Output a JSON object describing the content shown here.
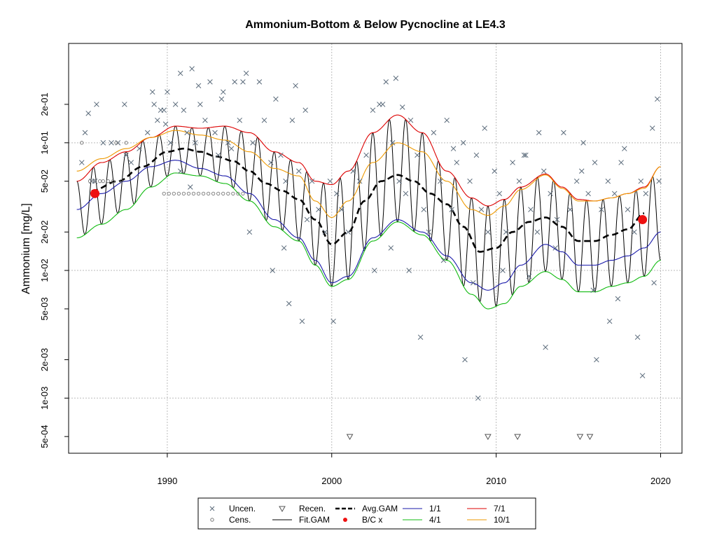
{
  "chart_data": {
    "type": "scatter",
    "title": "Ammonium-Bottom & Below Pycnocline at LE4.3",
    "xlabel": "",
    "ylabel": "Ammonium [mg/L]",
    "y_scale": "log",
    "xlim": [
      1984.0,
      2021.3
    ],
    "ylim": [
      0.00037,
      0.6
    ],
    "x_ticks": [
      1990,
      2000,
      2010,
      2020
    ],
    "x_tick_labels": [
      "1990",
      "2000",
      "2010",
      "2020"
    ],
    "y_ticks": [
      0.0005,
      0.001,
      0.002,
      0.005,
      0.01,
      0.02,
      0.05,
      0.1,
      0.2
    ],
    "y_tick_labels": [
      "5e-04",
      "1e-03",
      "2e-03",
      "5e-03",
      "1e-02",
      "2e-02",
      "5e-02",
      "1e-01",
      "2e-01"
    ],
    "gridlines_x": [
      1990,
      2000,
      2010,
      2020
    ],
    "gridlines_y": [
      0.001,
      0.01,
      0.1
    ],
    "grid": true,
    "colors": {
      "uncen": "#5a6a7a",
      "cens": "#777777",
      "recen": "#555555",
      "fit_gam": "#000000",
      "avg_gam": "#000000",
      "bc": "#ee1111",
      "q1_1": "#1a1aaa",
      "q4_1": "#11bb11",
      "q7_1": "#dd0000",
      "q10_1": "#ee9900"
    },
    "series": [
      {
        "name": "Uncen.",
        "marker": "x",
        "x": [
          1984.8,
          1985.0,
          1985.4,
          1985.7,
          1986.1,
          1986.6,
          1987.0,
          1987.4,
          1987.5,
          1987.8,
          1988.3,
          1988.8,
          1989.1,
          1989.4,
          1989.6,
          1989.9,
          1990.0,
          1990.2,
          1990.5,
          1990.8,
          1991.0,
          1991.2,
          1991.5,
          1991.7,
          1992.0,
          1992.3,
          1992.6,
          1992.9,
          1993.1,
          1993.4,
          1993.7,
          1994.1,
          1994.4,
          1994.8,
          1995.2,
          1995.6,
          1995.9,
          1996.3,
          1996.6,
          1996.9,
          1997.2,
          1997.6,
          1998.0,
          1998.4,
          1998.8,
          1999.2,
          1999.6,
          1999.9,
          2000.3,
          2000.6,
          2001.0,
          2001.3,
          2001.7,
          2002.1,
          2002.5,
          2002.9,
          2003.3,
          2003.7,
          2004.1,
          2004.5,
          2004.8,
          2005.2,
          2005.6,
          2005.9,
          2006.2,
          2006.6,
          2007.0,
          2007.3,
          2007.6,
          2008.0,
          2008.4,
          2008.8,
          2009.1,
          2009.5,
          2009.9,
          2010.2,
          2010.6,
          2011.0,
          2011.4,
          2011.8,
          2012.1,
          2012.5,
          2012.9,
          2013.3,
          2013.7,
          2014.1,
          2014.5,
          2014.9,
          2015.2,
          2015.6,
          2016.0,
          2016.4,
          2016.8,
          2017.2,
          2017.6,
          2018.0,
          2018.4,
          2018.8,
          2019.1,
          2019.5,
          2019.8,
          1985.6,
          1990.8,
          1991.4,
          1993.9,
          1995.0,
          1997.1,
          1998.5,
          2002.6,
          2003.6,
          2004.7,
          2006.8,
          2008.6,
          2010.4,
          2012.0,
          2013.6,
          2015.9,
          2017.4,
          2019.6,
          1996.4,
          1998.2,
          2000.1,
          2005.4,
          2008.1,
          2008.9,
          2013.0,
          2016.1,
          2016.9,
          2018.6,
          2018.9,
          1989.2,
          1989.8,
          1991.9,
          1993.3,
          1994.6,
          1997.8,
          2003.9,
          2007.4,
          2011.7,
          2015.3,
          2019.9,
          1985.2,
          2003.1,
          2004.3,
          2009.3,
          2012.6,
          2017.8,
          1997.4
        ],
        "y": [
          0.07,
          0.12,
          0.05,
          0.2,
          0.1,
          0.1,
          0.1,
          0.2,
          0.08,
          0.07,
          0.09,
          0.12,
          0.25,
          0.15,
          0.18,
          0.14,
          0.25,
          0.1,
          0.2,
          0.35,
          0.18,
          0.12,
          0.38,
          0.1,
          0.2,
          0.15,
          0.3,
          0.12,
          0.08,
          0.25,
          0.1,
          0.3,
          0.15,
          0.35,
          0.1,
          0.3,
          0.15,
          0.07,
          0.22,
          0.08,
          0.05,
          0.15,
          0.06,
          0.18,
          0.05,
          0.03,
          0.02,
          0.05,
          0.04,
          0.03,
          0.02,
          0.06,
          0.05,
          0.08,
          0.18,
          0.2,
          0.3,
          0.1,
          0.05,
          0.04,
          0.15,
          0.08,
          0.03,
          0.02,
          0.12,
          0.05,
          0.15,
          0.03,
          0.07,
          0.1,
          0.05,
          0.08,
          0.03,
          0.02,
          0.06,
          0.04,
          0.02,
          0.07,
          0.05,
          0.08,
          0.03,
          0.02,
          0.06,
          0.04,
          0.025,
          0.12,
          0.03,
          0.05,
          0.06,
          0.04,
          0.07,
          0.03,
          0.05,
          0.04,
          0.07,
          0.03,
          0.02,
          0.05,
          0.04,
          0.13,
          0.22,
          0.05,
          0.06,
          0.045,
          0.09,
          0.02,
          0.015,
          0.025,
          0.01,
          0.015,
          0.01,
          0.012,
          0.008,
          0.01,
          0.009,
          0.015,
          0.007,
          0.006,
          0.008,
          0.01,
          0.004,
          0.004,
          0.003,
          0.002,
          0.001,
          0.0025,
          0.002,
          0.004,
          0.003,
          0.0015,
          0.2,
          0.18,
          0.28,
          0.22,
          0.3,
          0.28,
          0.32,
          0.09,
          0.08,
          0.1,
          0.05,
          0.17,
          0.2,
          0.19,
          0.13,
          0.12,
          0.09,
          0.0055
        ]
      },
      {
        "name": "Cens.",
        "marker": "o",
        "x": [
          1984.8,
          1985.3,
          1985.6,
          1985.9,
          1986.1,
          1986.4,
          1986.7,
          1986.9,
          1987.2,
          1987.5,
          1989.8,
          1990.1,
          1990.4,
          1990.7,
          1991.0,
          1991.3,
          1991.6,
          1991.9,
          1992.2,
          1992.5,
          1992.8,
          1993.1,
          1993.4,
          1993.7,
          1994.0,
          1994.3,
          1994.6
        ],
        "y": [
          0.1,
          0.05,
          0.05,
          0.05,
          0.05,
          0.05,
          0.05,
          0.1,
          0.05,
          0.1,
          0.04,
          0.04,
          0.04,
          0.04,
          0.04,
          0.04,
          0.04,
          0.04,
          0.04,
          0.04,
          0.04,
          0.04,
          0.04,
          0.04,
          0.04,
          0.04,
          0.04
        ]
      },
      {
        "name": "Recen.",
        "marker": "triangle-down",
        "x": [
          2001.1,
          2009.5,
          2011.3,
          2015.1,
          2015.7
        ],
        "y": [
          0.0005,
          0.0005,
          0.0005,
          0.0005,
          0.0005
        ]
      },
      {
        "name": "Fit.GAM",
        "line": "solid",
        "color": "#000000",
        "description": "seasonal fitted curve oscillating between 4/1 and 7/1 envelopes"
      },
      {
        "name": "Avg.GAM",
        "line": "dashed",
        "x": [
          1985.4,
          1987.0,
          1988.5,
          1990.0,
          1991.0,
          1992.0,
          1993.0,
          1994.0,
          1995.0,
          1996.0,
          1997.0,
          1998.0,
          1999.0,
          2000.0,
          2001.0,
          2002.0,
          2003.0,
          2004.0,
          2005.0,
          2006.0,
          2007.0,
          2008.0,
          2009.0,
          2010.0,
          2011.0,
          2012.0,
          2013.0,
          2014.0,
          2015.0,
          2016.0,
          2017.0,
          2018.0,
          2019.0
        ],
        "y": [
          0.042,
          0.05,
          0.065,
          0.085,
          0.09,
          0.085,
          0.078,
          0.072,
          0.06,
          0.048,
          0.042,
          0.036,
          0.025,
          0.016,
          0.02,
          0.035,
          0.05,
          0.056,
          0.05,
          0.04,
          0.033,
          0.022,
          0.014,
          0.015,
          0.02,
          0.024,
          0.026,
          0.022,
          0.017,
          0.017,
          0.019,
          0.021,
          0.028
        ]
      },
      {
        "name": "1/1",
        "line": "solid",
        "x": [
          1984.5,
          1986.0,
          1987.5,
          1989.0,
          1990.5,
          1992.0,
          1993.5,
          1995.0,
          1996.5,
          1998.0,
          1999.0,
          2000.0,
          2001.0,
          2002.5,
          2004.0,
          2005.5,
          2007.0,
          2008.5,
          2009.5,
          2010.5,
          2011.5,
          2013.0,
          2014.0,
          2015.0,
          2016.0,
          2017.0,
          2018.0,
          2019.0,
          2020.0
        ],
        "y": [
          0.03,
          0.04,
          0.05,
          0.065,
          0.073,
          0.063,
          0.055,
          0.04,
          0.025,
          0.018,
          0.012,
          0.008,
          0.009,
          0.018,
          0.025,
          0.02,
          0.013,
          0.008,
          0.007,
          0.008,
          0.011,
          0.016,
          0.014,
          0.011,
          0.011,
          0.012,
          0.013,
          0.015,
          0.02
        ]
      },
      {
        "name": "4/1",
        "line": "solid",
        "x": [
          1984.5,
          1986.0,
          1987.5,
          1989.0,
          1990.5,
          1992.0,
          1993.5,
          1995.0,
          1996.5,
          1998.0,
          1999.0,
          2000.0,
          2001.0,
          2002.5,
          2004.0,
          2005.5,
          2007.0,
          2008.5,
          2009.5,
          2010.5,
          2011.5,
          2013.0,
          2014.0,
          2015.0,
          2016.0,
          2017.0,
          2018.0,
          2019.0,
          2020.0
        ],
        "y": [
          0.018,
          0.023,
          0.03,
          0.045,
          0.058,
          0.055,
          0.048,
          0.035,
          0.022,
          0.017,
          0.011,
          0.0075,
          0.0085,
          0.017,
          0.024,
          0.019,
          0.012,
          0.0065,
          0.005,
          0.0055,
          0.0075,
          0.0098,
          0.0085,
          0.0068,
          0.0068,
          0.0075,
          0.008,
          0.009,
          0.012
        ]
      },
      {
        "name": "7/1",
        "line": "solid",
        "x": [
          1984.5,
          1986.0,
          1987.5,
          1989.0,
          1990.5,
          1992.0,
          1993.5,
          1995.0,
          1996.5,
          1998.0,
          1999.0,
          2000.0,
          2001.0,
          2002.5,
          2004.0,
          2005.5,
          2007.0,
          2008.5,
          2009.5,
          2010.5,
          2011.5,
          2013.0,
          2014.0,
          2015.0,
          2016.0,
          2017.0,
          2018.0,
          2019.0,
          2020.0
        ],
        "y": [
          0.05,
          0.07,
          0.085,
          0.11,
          0.135,
          0.13,
          0.135,
          0.12,
          0.085,
          0.07,
          0.05,
          0.047,
          0.06,
          0.12,
          0.165,
          0.12,
          0.06,
          0.037,
          0.032,
          0.036,
          0.045,
          0.057,
          0.045,
          0.036,
          0.035,
          0.037,
          0.04,
          0.045,
          0.065
        ]
      },
      {
        "name": "10/1",
        "line": "solid",
        "x": [
          1984.5,
          1986.0,
          1987.5,
          1989.0,
          1990.5,
          1992.0,
          1993.5,
          1995.0,
          1996.5,
          1998.0,
          1999.0,
          2000.0,
          2001.0,
          2002.5,
          2004.0,
          2005.5,
          2007.0,
          2008.5,
          2009.5,
          2010.5,
          2011.5,
          2013.0,
          2014.0,
          2015.0,
          2016.0,
          2017.0,
          2018.0,
          2019.0,
          2020.0
        ],
        "y": [
          0.06,
          0.075,
          0.09,
          0.11,
          0.125,
          0.115,
          0.105,
          0.085,
          0.063,
          0.055,
          0.035,
          0.026,
          0.035,
          0.07,
          0.1,
          0.085,
          0.05,
          0.03,
          0.027,
          0.032,
          0.043,
          0.056,
          0.044,
          0.035,
          0.035,
          0.037,
          0.04,
          0.044,
          0.065
        ]
      },
      {
        "name": "B/C x",
        "marker": "dot",
        "x": [
          1985.6,
          2018.9
        ],
        "y": [
          0.04,
          0.025
        ]
      }
    ],
    "legend": {
      "placement": "bottom-center",
      "entries": [
        "Uncen.",
        "Recen.",
        "Avg.GAM",
        "1/1",
        "7/1",
        "Cens.",
        "Fit.GAM",
        "B/C x",
        "4/1",
        "10/1"
      ]
    }
  }
}
